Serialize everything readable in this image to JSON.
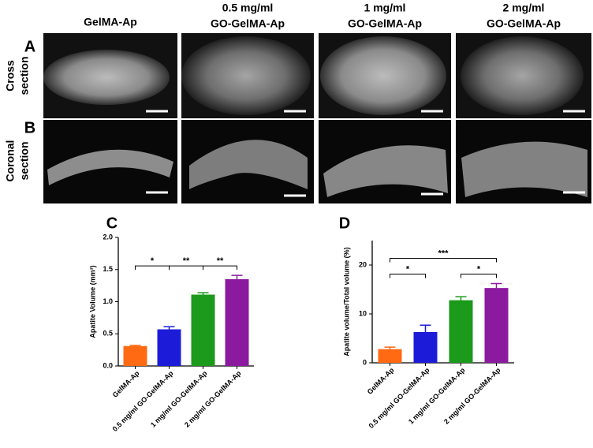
{
  "figure": {
    "columns": [
      [
        "GelMA-Ap"
      ],
      [
        "0.5 mg/ml",
        "GO-GelMA-Ap"
      ],
      [
        "1 mg/ml",
        "GO-GelMA-Ap"
      ],
      [
        "2 mg/ml",
        "GO-GelMA-Ap"
      ]
    ],
    "rows": [
      {
        "panel": "A",
        "label": [
          "Cross",
          "section"
        ]
      },
      {
        "panel": "B",
        "label": [
          "Coronal",
          "section"
        ]
      }
    ]
  },
  "chart_data": [
    {
      "type": "bar",
      "panel": "C",
      "y_label": "Apatite Volume (mm³)",
      "categories": [
        "GelMA-Ap",
        "0.5 mg/ml GO-GelMA-Ap",
        "1 mg/ml GO-GelMA-Ap",
        "2 mg/ml GO-GelMA-Ap"
      ],
      "values": [
        0.31,
        0.57,
        1.11,
        1.35
      ],
      "errors": [
        0.01,
        0.04,
        0.03,
        0.06
      ],
      "colors": [
        "#ff6a13",
        "#1c1cd8",
        "#1b9a1b",
        "#8b1a9e"
      ],
      "ylim": [
        0,
        2.0
      ],
      "yticks": [
        {
          "value": 0,
          "label": "0.0"
        },
        0.5,
        {
          "value": 1,
          "label": "1.0"
        },
        1.5,
        {
          "value": 2,
          "label": "2.0"
        }
      ],
      "significance": [
        {
          "from": 0,
          "to": 1,
          "label": "*"
        },
        {
          "from": 1,
          "to": 2,
          "label": "**"
        },
        {
          "from": 2,
          "to": 3,
          "label": "**"
        }
      ]
    },
    {
      "type": "bar",
      "panel": "D",
      "y_label": "Apatite volume/Total volume (%)",
      "categories": [
        "GelMA-Ap",
        "0.5 mg/ml GO-GelMA-Ap",
        "1 mg/ml GO-GelMA-Ap",
        "2 mg/ml GO-GelMA-Ap"
      ],
      "values": [
        2.8,
        6.3,
        12.8,
        15.3
      ],
      "errors": [
        0.4,
        1.4,
        0.7,
        0.9
      ],
      "colors": [
        "#ff6a13",
        "#1c1cd8",
        "#1b9a1b",
        "#8b1a9e"
      ],
      "ylim": [
        0,
        25
      ],
      "yticks": [
        0,
        10,
        20
      ],
      "significance": [
        {
          "from": 0,
          "to": 1,
          "label": "*"
        },
        {
          "from": 2,
          "to": 3,
          "label": "*"
        },
        {
          "from": 0,
          "to": 3,
          "label": "***"
        }
      ]
    }
  ]
}
